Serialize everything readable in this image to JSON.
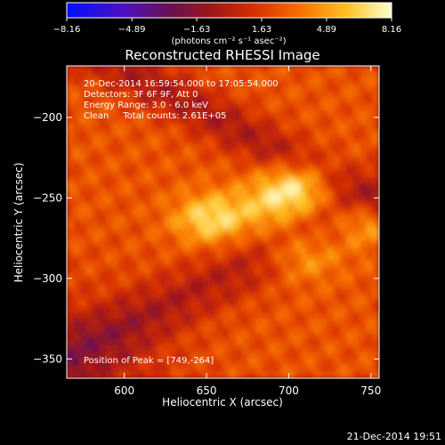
{
  "chart_data": {
    "type": "heatmap",
    "title": "Reconstructed RHESSI Image",
    "xlabel": "Heliocentric X (arcsec)",
    "ylabel": "Heliocentric Y (arcsec)",
    "xlim": [
      565,
      755
    ],
    "ylim": [
      -362,
      -168
    ],
    "x_ticks": [
      600,
      650,
      700,
      750
    ],
    "y_ticks": [
      -200,
      -250,
      -300,
      -350
    ],
    "x_tick_labels": [
      "600",
      "650",
      "700",
      "750"
    ],
    "y_tick_labels": [
      "−200",
      "−250",
      "−300",
      "−350"
    ],
    "colorbar": {
      "ticks": [
        -8.16,
        -4.89,
        -1.63,
        1.63,
        4.89,
        8.16
      ],
      "tick_labels": [
        "−8.16",
        "−4.89",
        "−1.63",
        "1.63",
        "4.89",
        "8.16"
      ],
      "range": [
        -8.16,
        8.16
      ],
      "unit_label": "(photons cm⁻² s⁻¹ asec⁻²)",
      "colormap": "RHESSI color table (blue → violet → red → orange → yellow → white)"
    },
    "annotations": [
      "20-Dec-2014 16:59:54.000 to 17:05:54.000",
      "Detectors: 3F 6F 9F, Att 0",
      "Energy Range: 3.0 - 6.0 keV",
      "Clean     Total counts: 2.61E+05"
    ],
    "peak_text": "Position of Peak = [749,-264]",
    "peak": {
      "x": 749,
      "y": -264
    },
    "sources": [
      {
        "x": 749,
        "y": -264,
        "amplitude": 1.0
      },
      {
        "x": 707,
        "y": -242,
        "amplitude": 0.95
      },
      {
        "x": 653,
        "y": -263,
        "amplitude": 0.9
      },
      {
        "x": 709,
        "y": -285,
        "amplitude": 0.7
      },
      {
        "x": 690,
        "y": -255,
        "amplitude": 0.55
      }
    ],
    "timestamp": "21-Dec-2014 19:51"
  }
}
